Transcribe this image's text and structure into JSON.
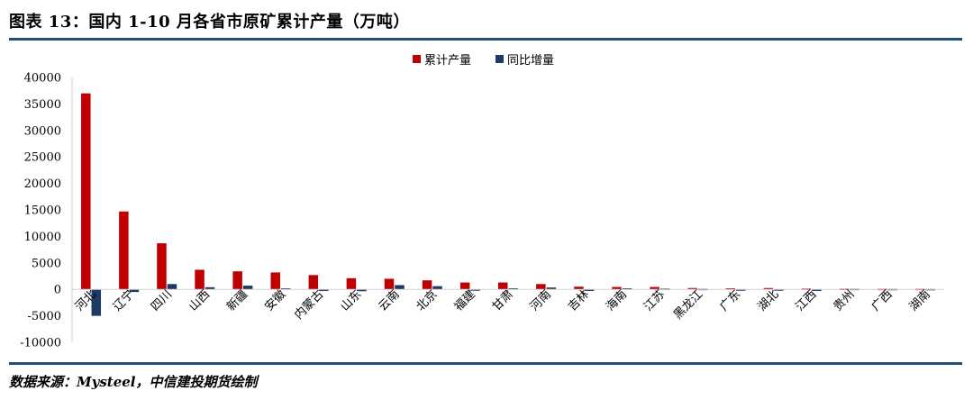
{
  "header": {
    "title": "图表 13：国内 1-10 月各省市原矿累计产量（万吨）"
  },
  "footer": {
    "source": "数据来源：Mysteel，中信建投期货绘制"
  },
  "colors": {
    "series1": "#c00000",
    "series2": "#1f3864",
    "rule": "#1f4e79"
  },
  "chart_data": {
    "type": "bar",
    "title": "",
    "xlabel": "",
    "ylabel": "",
    "ylim": [
      -10000,
      40000
    ],
    "yticks": [
      -10000,
      -5000,
      0,
      5000,
      10000,
      15000,
      20000,
      25000,
      30000,
      35000,
      40000
    ],
    "grid": false,
    "legend_position": "top-center",
    "categories": [
      "河北",
      "辽宁",
      "四川",
      "山西",
      "新疆",
      "安徽",
      "内蒙古",
      "山东",
      "云南",
      "北京",
      "福建",
      "甘肃",
      "河南",
      "吉林",
      "海南",
      "江苏",
      "黑龙江",
      "广东",
      "湖北",
      "江西",
      "贵州",
      "广西",
      "湖南"
    ],
    "series": [
      {
        "name": "累计产量",
        "values": [
          37000,
          14700,
          8700,
          3700,
          3400,
          3200,
          2700,
          2100,
          2000,
          1700,
          1300,
          1300,
          1000,
          500,
          450,
          450,
          250,
          200,
          250,
          150,
          120,
          100,
          100
        ]
      },
      {
        "name": "同比增量",
        "values": [
          -5000,
          -500,
          1000,
          400,
          700,
          200,
          -300,
          -350,
          800,
          600,
          -250,
          200,
          350,
          -300,
          200,
          150,
          100,
          -200,
          -250,
          -300,
          100,
          80,
          70
        ]
      }
    ]
  }
}
